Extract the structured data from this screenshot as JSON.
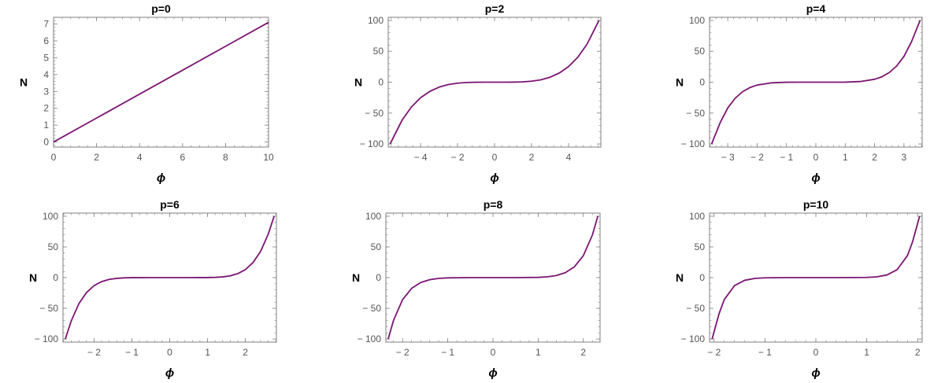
{
  "colors": {
    "curve": "#7b1573",
    "frame": "#7f7f7f",
    "tick_label": "#555555",
    "title": "#000000"
  },
  "chart_data": [
    {
      "type": "line",
      "title": "p=0",
      "xlabel": "ϕ",
      "ylabel": "N",
      "xlim": [
        0,
        10
      ],
      "ylim": [
        -0.3,
        7.4
      ],
      "xticks": [
        0,
        2,
        4,
        6,
        8,
        10
      ],
      "yticks": [
        0,
        1,
        2,
        3,
        4,
        5,
        6,
        7
      ],
      "series": [
        {
          "x": [
            0,
            2,
            4,
            6,
            8,
            10
          ],
          "y": [
            0,
            1.42,
            2.84,
            4.26,
            5.68,
            7.1
          ]
        }
      ]
    },
    {
      "type": "line",
      "title": "p=2",
      "xlabel": "ϕ",
      "ylabel": "N",
      "xlim": [
        -5.75,
        5.75
      ],
      "ylim": [
        -105,
        105
      ],
      "xticks": [
        -4,
        -2,
        0,
        2,
        4
      ],
      "yticks": [
        -100,
        -50,
        0,
        50,
        100
      ],
      "series": [
        {
          "x": [
            -5.65,
            -5.0,
            -4.5,
            -4.0,
            -3.5,
            -3.0,
            -2.5,
            -2.0,
            -1.5,
            -1.0,
            -0.5,
            0,
            0.5,
            1.0,
            1.5,
            2.0,
            2.5,
            3.0,
            3.5,
            4.0,
            4.5,
            5.0,
            5.65
          ],
          "y": [
            -100,
            -61.4,
            -40.3,
            -25.2,
            -14.8,
            -8.0,
            -3.8,
            -1.6,
            -0.5,
            -0.1,
            0,
            0,
            0,
            0.1,
            0.5,
            1.6,
            3.8,
            8.0,
            14.8,
            25.2,
            40.3,
            61.4,
            100
          ]
        }
      ]
    },
    {
      "type": "line",
      "title": "p=4",
      "xlabel": "ϕ",
      "ylabel": "N",
      "xlim": [
        -3.62,
        3.62
      ],
      "ylim": [
        -105,
        105
      ],
      "xticks": [
        -3,
        -2,
        -1,
        0,
        1,
        2,
        3
      ],
      "yticks": [
        -100,
        -50,
        0,
        50,
        100
      ],
      "series": [
        {
          "x": [
            -3.55,
            -3.25,
            -3.0,
            -2.75,
            -2.5,
            -2.25,
            -2.0,
            -1.5,
            -1.0,
            -0.5,
            0,
            0.5,
            1.0,
            1.5,
            2.0,
            2.25,
            2.5,
            2.75,
            3.0,
            3.25,
            3.55
          ],
          "y": [
            -100,
            -64.7,
            -41.8,
            -26.1,
            -15.6,
            -8.8,
            -4.7,
            -1.0,
            -0.1,
            0,
            0,
            0,
            0.1,
            1.0,
            4.7,
            8.8,
            15.6,
            26.1,
            41.8,
            64.7,
            100
          ]
        }
      ]
    },
    {
      "type": "line",
      "title": "p=6",
      "xlabel": "ϕ",
      "ylabel": "N",
      "xlim": [
        -2.82,
        2.82
      ],
      "ylim": [
        -105,
        105
      ],
      "xticks": [
        -2,
        -1,
        0,
        1,
        2
      ],
      "yticks": [
        -100,
        -50,
        0,
        50,
        100
      ],
      "series": [
        {
          "x": [
            -2.76,
            -2.6,
            -2.4,
            -2.2,
            -2.0,
            -1.8,
            -1.6,
            -1.4,
            -1.2,
            -1.0,
            -0.5,
            0,
            0.5,
            1.0,
            1.2,
            1.4,
            1.6,
            1.8,
            2.0,
            2.2,
            2.4,
            2.6,
            2.76
          ],
          "y": [
            -100,
            -70.2,
            -42.4,
            -24.4,
            -13.1,
            -6.5,
            -2.9,
            -1.2,
            -0.4,
            -0.1,
            0,
            0,
            0,
            0.1,
            0.4,
            1.2,
            2.9,
            6.5,
            13.1,
            24.4,
            42.4,
            70.2,
            100
          ]
        }
      ]
    },
    {
      "type": "line",
      "title": "p=8",
      "xlabel": "ϕ",
      "ylabel": "N",
      "xlim": [
        -2.37,
        2.37
      ],
      "ylim": [
        -105,
        105
      ],
      "xticks": [
        -2,
        -1,
        0,
        1,
        2
      ],
      "yticks": [
        -100,
        -50,
        0,
        50,
        100
      ],
      "series": [
        {
          "x": [
            -2.32,
            -2.2,
            -2.0,
            -1.8,
            -1.6,
            -1.4,
            -1.2,
            -1.0,
            -0.5,
            0,
            0.5,
            1.0,
            1.2,
            1.4,
            1.6,
            1.8,
            2.0,
            2.2,
            2.32
          ],
          "y": [
            -100,
            -69.4,
            -35.8,
            -17.5,
            -8.0,
            -3.4,
            -1.3,
            -0.4,
            0,
            0,
            0,
            0.4,
            1.3,
            3.4,
            8.0,
            17.5,
            35.8,
            69.4,
            100
          ]
        }
      ]
    },
    {
      "type": "line",
      "title": "p=10",
      "xlabel": "ϕ",
      "ylabel": "N",
      "xlim": [
        -2.09,
        2.09
      ],
      "ylim": [
        -105,
        105
      ],
      "xticks": [
        -2,
        -1,
        0,
        1,
        2
      ],
      "yticks": [
        -100,
        -50,
        0,
        50,
        100
      ],
      "series": [
        {
          "x": [
            -2.04,
            -1.9,
            -1.8,
            -1.6,
            -1.4,
            -1.2,
            -1.0,
            -0.5,
            0,
            0.5,
            1.0,
            1.2,
            1.4,
            1.6,
            1.8,
            1.9,
            2.04
          ],
          "y": [
            -100,
            -58.0,
            -35.8,
            -13.1,
            -4.4,
            -1.3,
            -0.3,
            0,
            0,
            0,
            0.3,
            1.3,
            4.4,
            13.1,
            35.8,
            58.0,
            100
          ]
        }
      ]
    }
  ]
}
